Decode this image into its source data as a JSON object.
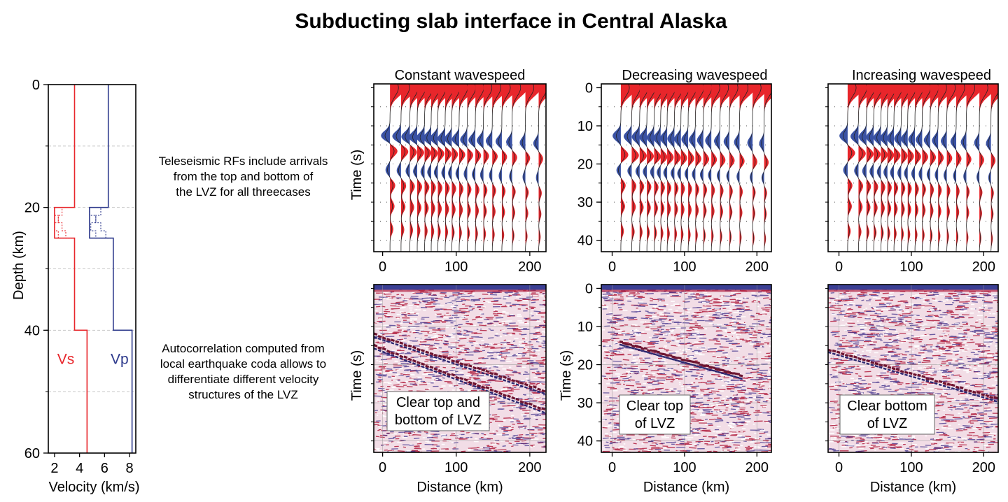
{
  "title": "Subducting slab interface in Central Alaska",
  "notes": {
    "rf": [
      "Teleseismic RFs include arrivals",
      "from the top and bottom of",
      "the LVZ for all threecases"
    ],
    "ac": [
      "Autocorrelation computed from",
      "local earthquake coda allows to",
      "differentiate different velocity",
      "structures of the LVZ"
    ]
  },
  "colors": {
    "vs": "#e8262b",
    "vp": "#2e3a8c",
    "pos": "#e8262b",
    "neg": "#3a52a4"
  },
  "chart_data": [
    {
      "id": "velocity-profile",
      "type": "line",
      "xlabel": "Velocity (km/s)",
      "ylabel": "Depth (km)",
      "xlim": [
        1.5,
        8.5
      ],
      "ylim": [
        60,
        0
      ],
      "xticks": [
        2,
        4,
        6,
        8
      ],
      "yticks": [
        0,
        20,
        40,
        60
      ],
      "grid": "dashed horizontal",
      "series": [
        {
          "name": "Vs",
          "color": "#e8262b",
          "points": [
            [
              3.6,
              0
            ],
            [
              3.6,
              20
            ],
            [
              2.0,
              20
            ],
            [
              2.0,
              25
            ],
            [
              3.6,
              25
            ],
            [
              3.6,
              40
            ],
            [
              4.6,
              40
            ],
            [
              4.6,
              60
            ]
          ]
        },
        {
          "name": "Vp",
          "color": "#2e3a8c",
          "points": [
            [
              6.3,
              0
            ],
            [
              6.3,
              20
            ],
            [
              4.8,
              20
            ],
            [
              4.8,
              25
            ],
            [
              6.7,
              25
            ],
            [
              6.7,
              40
            ],
            [
              8.2,
              40
            ],
            [
              8.2,
              60
            ]
          ]
        }
      ],
      "lvz_variants": {
        "vs": [
          [
            [
              3.6,
              20
            ],
            [
              2.6,
              20
            ],
            [
              2.6,
              21.3
            ],
            [
              2.3,
              21.3
            ],
            [
              2.3,
              22.5
            ],
            [
              2.0,
              22.5
            ],
            [
              2.0,
              23.8
            ],
            [
              2.3,
              23.8
            ],
            [
              2.3,
              25
            ],
            [
              3.6,
              25
            ]
          ],
          [
            [
              3.6,
              20
            ],
            [
              2.0,
              20
            ],
            [
              2.0,
              21.3
            ],
            [
              2.3,
              21.3
            ],
            [
              2.3,
              22.5
            ],
            [
              2.6,
              22.5
            ],
            [
              2.6,
              23.8
            ],
            [
              2.9,
              23.8
            ],
            [
              2.9,
              25
            ],
            [
              3.6,
              25
            ]
          ]
        ],
        "vp": [
          [
            [
              6.3,
              20
            ],
            [
              5.7,
              20
            ],
            [
              5.7,
              21.3
            ],
            [
              5.3,
              21.3
            ],
            [
              5.3,
              22.5
            ],
            [
              4.9,
              22.5
            ],
            [
              4.9,
              23.8
            ],
            [
              5.3,
              23.8
            ],
            [
              5.3,
              25
            ],
            [
              6.7,
              25
            ]
          ],
          [
            [
              6.3,
              20
            ],
            [
              4.8,
              20
            ],
            [
              4.8,
              21.3
            ],
            [
              5.3,
              21.3
            ],
            [
              5.3,
              22.5
            ],
            [
              5.7,
              22.5
            ],
            [
              5.7,
              23.8
            ],
            [
              6.1,
              23.8
            ],
            [
              6.1,
              25
            ],
            [
              6.7,
              25
            ]
          ]
        ]
      }
    },
    {
      "id": "rf-constant",
      "type": "wiggle",
      "title": "Constant wavespeed",
      "ylabel": "Time (s)",
      "xlim": [
        -12,
        222
      ],
      "ylim": [
        43,
        -1
      ],
      "xticks": [
        0,
        100,
        200
      ],
      "yticks": [],
      "stations_km": [
        10,
        25,
        37,
        47,
        57,
        66,
        75,
        85,
        94,
        104,
        115,
        126,
        137,
        149,
        162,
        176,
        194,
        212
      ],
      "arrivals": [
        {
          "t": 0.0,
          "pol": 1,
          "amp": 1.0
        },
        {
          "t": 12.5,
          "pol": -1,
          "amp": 0.6
        },
        {
          "t": 16.5,
          "pol": 1,
          "amp": 0.5
        },
        {
          "t": 21.5,
          "pol": -1,
          "amp": 0.3
        },
        {
          "t": 25.5,
          "pol": 1,
          "amp": 0.35
        },
        {
          "t": 31.0,
          "pol": 1,
          "amp": 0.3
        },
        {
          "t": 37.0,
          "pol": 1,
          "amp": 0.22
        }
      ]
    },
    {
      "id": "rf-decreasing",
      "type": "wiggle",
      "title": "Decreasing wavespeed",
      "ylabel": "",
      "xlim": [
        -15,
        220
      ],
      "ylim": [
        43,
        -1
      ],
      "xticks": [
        0,
        100,
        200
      ],
      "yticks": [
        0,
        10,
        20,
        30,
        40
      ],
      "stations_km": [
        12,
        27,
        38,
        48,
        58,
        67,
        76,
        86,
        95,
        105,
        115,
        126,
        137,
        149,
        162,
        176,
        194,
        210
      ],
      "arrivals": [
        {
          "t": 0.0,
          "pol": 1,
          "amp": 1.0
        },
        {
          "t": 12.5,
          "pol": -1,
          "amp": 0.55
        },
        {
          "t": 17.5,
          "pol": 1,
          "amp": 0.5
        },
        {
          "t": 21.5,
          "pol": -1,
          "amp": 0.3
        },
        {
          "t": 25.5,
          "pol": 1,
          "amp": 0.32
        },
        {
          "t": 31.0,
          "pol": 1,
          "amp": 0.28
        },
        {
          "t": 37.5,
          "pol": 1,
          "amp": 0.2
        }
      ]
    },
    {
      "id": "rf-increasing",
      "type": "wiggle",
      "title": "Increasing wavespeed",
      "ylabel": "",
      "xlim": [
        -15,
        220
      ],
      "ylim": [
        43,
        -1
      ],
      "xticks": [
        0,
        100,
        200
      ],
      "yticks": [],
      "stations_km": [
        12,
        27,
        38,
        48,
        58,
        67,
        76,
        86,
        95,
        105,
        115,
        126,
        137,
        149,
        162,
        176,
        194,
        210
      ],
      "arrivals": [
        {
          "t": 0.0,
          "pol": 1,
          "amp": 1.0
        },
        {
          "t": 12.5,
          "pol": -1,
          "amp": 0.55
        },
        {
          "t": 17.0,
          "pol": 1,
          "amp": 0.5
        },
        {
          "t": 21.5,
          "pol": -1,
          "amp": 0.3
        },
        {
          "t": 25.5,
          "pol": 1,
          "amp": 0.32
        },
        {
          "t": 31.0,
          "pol": 1,
          "amp": 0.28
        },
        {
          "t": 37.5,
          "pol": 1,
          "amp": 0.2
        }
      ]
    },
    {
      "id": "ac-constant",
      "type": "heatmap",
      "ylabel": "Time (s)",
      "xlabel": "Distance (km)",
      "xlim": [
        -12,
        222
      ],
      "ylim": [
        43,
        -1
      ],
      "xticks": [
        0,
        100,
        200
      ],
      "yticks": [],
      "reflectors": [
        {
          "x0": -12,
          "t0": 12,
          "x1": 222,
          "t1": 27
        },
        {
          "x0": -12,
          "t0": 15,
          "x1": 222,
          "t1": 32
        }
      ],
      "label": [
        "Clear top and",
        "bottom of LVZ"
      ]
    },
    {
      "id": "ac-decreasing",
      "type": "heatmap",
      "ylabel": "Time (s)",
      "xlabel": "Distance (km)",
      "xlim": [
        -15,
        220
      ],
      "ylim": [
        43,
        -1
      ],
      "xticks": [
        0,
        100,
        200
      ],
      "yticks": [
        0,
        10,
        20,
        30,
        40
      ],
      "reflectors": [
        {
          "x0": 10,
          "t0": 14,
          "x1": 180,
          "t1": 23
        }
      ],
      "label": [
        "Clear top",
        "of LVZ"
      ]
    },
    {
      "id": "ac-increasing",
      "type": "heatmap",
      "ylabel": "",
      "xlabel": "Distance (km)",
      "xlim": [
        -15,
        220
      ],
      "ylim": [
        43,
        -1
      ],
      "xticks": [
        0,
        100,
        200
      ],
      "yticks": [],
      "reflectors": [
        {
          "x0": -15,
          "t0": 16,
          "x1": 220,
          "t1": 29
        }
      ],
      "label": [
        "Clear bottom",
        "of LVZ"
      ]
    }
  ]
}
